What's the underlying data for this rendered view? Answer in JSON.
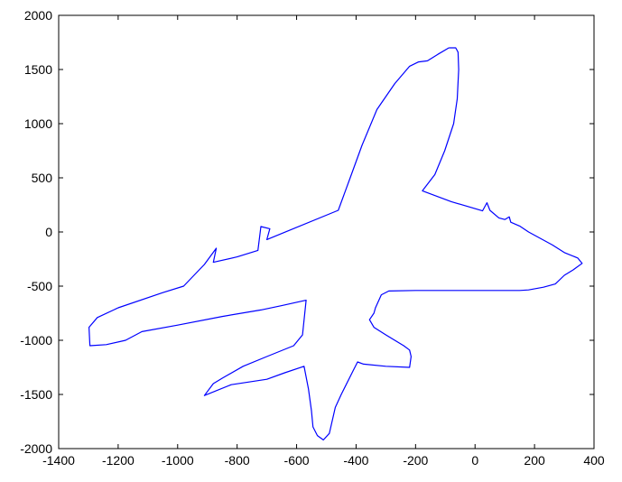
{
  "chart_data": {
    "type": "line",
    "title": "",
    "xlabel": "",
    "ylabel": "",
    "xlim": [
      -1400,
      400
    ],
    "ylim": [
      -2000,
      2000
    ],
    "x_ticks": [
      -1400,
      -1200,
      -1000,
      -800,
      -600,
      -400,
      -200,
      0,
      200,
      400
    ],
    "y_ticks": [
      -2000,
      -1500,
      -1000,
      -500,
      0,
      500,
      1000,
      1500,
      2000
    ],
    "grid": false,
    "line_color": "#0000ff",
    "series": [
      {
        "points": [
          [
            -88,
            1700
          ],
          [
            -65,
            1700
          ],
          [
            -57,
            1660
          ],
          [
            -55,
            1500
          ],
          [
            -60,
            1230
          ],
          [
            -72,
            1000
          ],
          [
            -102,
            750
          ],
          [
            -135,
            530
          ],
          [
            -177,
            380
          ],
          [
            -80,
            280
          ],
          [
            25,
            195
          ],
          [
            40,
            270
          ],
          [
            50,
            200
          ],
          [
            80,
            130
          ],
          [
            100,
            115
          ],
          [
            115,
            140
          ],
          [
            120,
            90
          ],
          [
            150,
            55
          ],
          [
            180,
            0
          ],
          [
            260,
            -120
          ],
          [
            300,
            -190
          ],
          [
            345,
            -240
          ],
          [
            360,
            -290
          ],
          [
            330,
            -350
          ],
          [
            300,
            -400
          ],
          [
            270,
            -480
          ],
          [
            230,
            -510
          ],
          [
            180,
            -535
          ],
          [
            150,
            -540
          ],
          [
            0,
            -540
          ],
          [
            -200,
            -540
          ],
          [
            -290,
            -545
          ],
          [
            -315,
            -580
          ],
          [
            -335,
            -700
          ],
          [
            -340,
            -750
          ],
          [
            -355,
            -810
          ],
          [
            -340,
            -880
          ],
          [
            -300,
            -950
          ],
          [
            -240,
            -1050
          ],
          [
            -220,
            -1090
          ],
          [
            -215,
            -1150
          ],
          [
            -220,
            -1250
          ],
          [
            -300,
            -1240
          ],
          [
            -375,
            -1220
          ],
          [
            -395,
            -1200
          ],
          [
            -410,
            -1280
          ],
          [
            -450,
            -1500
          ],
          [
            -470,
            -1620
          ],
          [
            -490,
            -1860
          ],
          [
            -510,
            -1920
          ],
          [
            -530,
            -1880
          ],
          [
            -545,
            -1800
          ],
          [
            -550,
            -1650
          ],
          [
            -560,
            -1450
          ],
          [
            -575,
            -1240
          ],
          [
            -640,
            -1300
          ],
          [
            -700,
            -1360
          ],
          [
            -820,
            -1410
          ],
          [
            -910,
            -1510
          ],
          [
            -880,
            -1400
          ],
          [
            -850,
            -1350
          ],
          [
            -780,
            -1240
          ],
          [
            -700,
            -1150
          ],
          [
            -610,
            -1050
          ],
          [
            -580,
            -950
          ],
          [
            -568,
            -630
          ],
          [
            -650,
            -680
          ],
          [
            -720,
            -720
          ],
          [
            -850,
            -780
          ],
          [
            -1000,
            -860
          ],
          [
            -1120,
            -920
          ],
          [
            -1175,
            -1000
          ],
          [
            -1240,
            -1040
          ],
          [
            -1295,
            -1050
          ],
          [
            -1298,
            -880
          ],
          [
            -1270,
            -790
          ],
          [
            -1200,
            -700
          ],
          [
            -1050,
            -560
          ],
          [
            -980,
            -500
          ],
          [
            -910,
            -300
          ],
          [
            -870,
            -150
          ],
          [
            -880,
            -280
          ],
          [
            -800,
            -230
          ],
          [
            -730,
            -170
          ],
          [
            -720,
            50
          ],
          [
            -690,
            30
          ],
          [
            -700,
            -70
          ],
          [
            -460,
            200
          ],
          [
            -420,
            500
          ],
          [
            -380,
            800
          ],
          [
            -330,
            1130
          ],
          [
            -270,
            1370
          ],
          [
            -220,
            1530
          ],
          [
            -190,
            1570
          ],
          [
            -160,
            1580
          ],
          [
            -125,
            1640
          ],
          [
            -88,
            1700
          ]
        ]
      }
    ]
  }
}
